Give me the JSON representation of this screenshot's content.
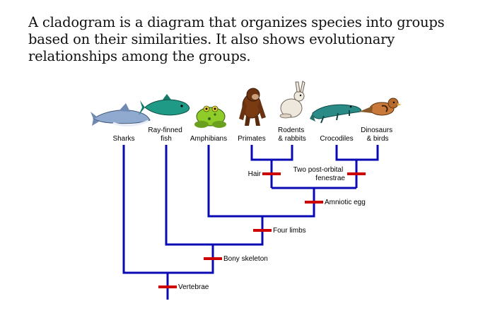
{
  "intro_text": "A cladogram is a diagram that organizes species into groups based on their similarities. It also shows evolutionary relationships among the groups.",
  "colors": {
    "branch": "#0a0ab4",
    "trait_mark": "#cc0000"
  },
  "taxa": [
    {
      "lines": [
        "Sharks"
      ],
      "icon": "shark-icon"
    },
    {
      "lines": [
        "Ray-finned",
        "fish"
      ],
      "icon": "fish-icon"
    },
    {
      "lines": [
        "Amphibians"
      ],
      "icon": "frog-icon"
    },
    {
      "lines": [
        "Primates"
      ],
      "icon": "ape-icon"
    },
    {
      "lines": [
        "Rodents",
        "& rabbits"
      ],
      "icon": "rabbit-icon"
    },
    {
      "lines": [
        "Crocodiles"
      ],
      "icon": "crocodile-icon"
    },
    {
      "lines": [
        "Dinosaurs",
        "& birds"
      ],
      "icon": "bird-icon"
    }
  ],
  "traits": [
    {
      "lines": [
        "Vertebrae"
      ]
    },
    {
      "lines": [
        "Bony skeleton"
      ]
    },
    {
      "lines": [
        "Four limbs"
      ]
    },
    {
      "lines": [
        "Amniotic egg"
      ]
    },
    {
      "lines": [
        "Hair"
      ]
    },
    {
      "lines": [
        "Two post-orbital",
        "fenestrae"
      ]
    }
  ]
}
